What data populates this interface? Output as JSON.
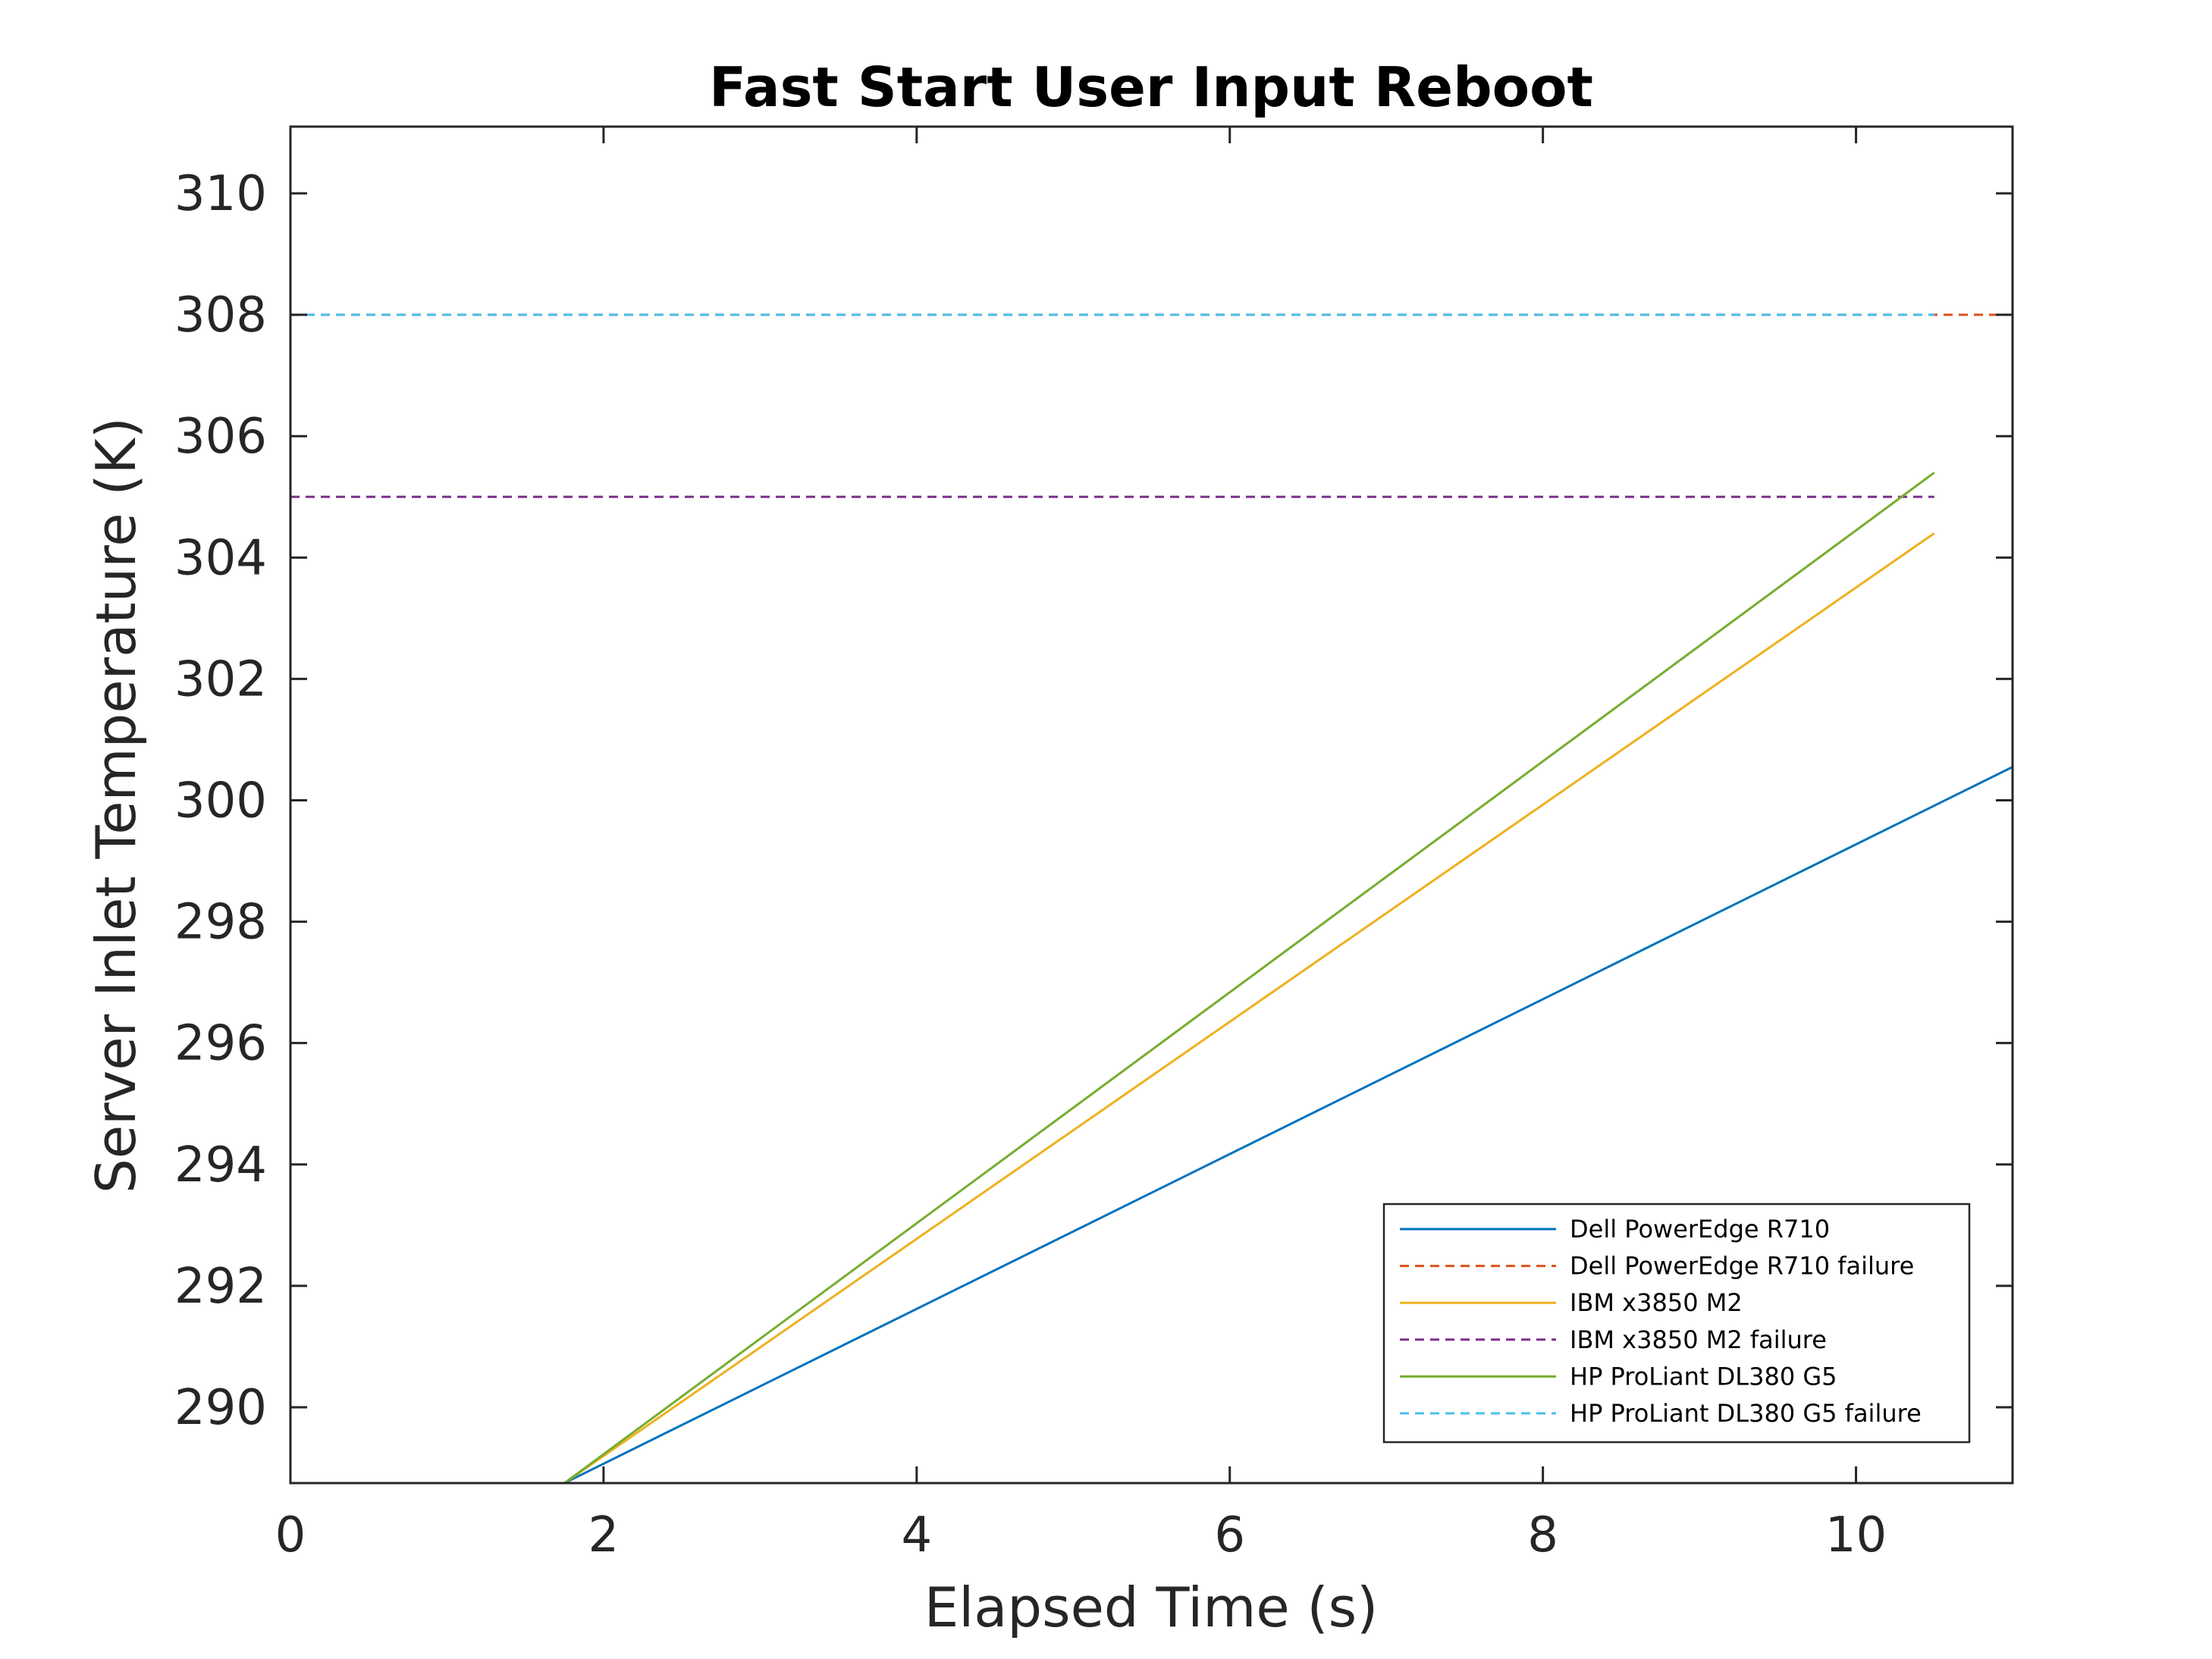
{
  "chart_data": {
    "type": "line",
    "title": "Fast Start User Input Reboot",
    "xlabel": "Elapsed Time (s)",
    "ylabel": "Server Inlet Temperature (K)",
    "xlim": [
      0,
      11
    ],
    "ylim": [
      288.75,
      311.1
    ],
    "xticks": [
      0,
      2,
      4,
      6,
      8,
      10
    ],
    "yticks": [
      290,
      292,
      294,
      296,
      298,
      300,
      302,
      304,
      306,
      308,
      310
    ],
    "grid": false,
    "legend_position": "bottom-right",
    "series": [
      {
        "name": "Dell PowerEdge R710",
        "color": "#0072BD",
        "dash": "solid",
        "x": [
          0,
          1.75,
          11
        ],
        "y": [
          288.75,
          288.75,
          300.55
        ]
      },
      {
        "name": "Dell PowerEdge R710 failure",
        "color": "#D95319",
        "dash": "dashed",
        "x": [
          0,
          11
        ],
        "y": [
          308,
          308
        ]
      },
      {
        "name": "IBM x3850 M2",
        "color": "#EDB120",
        "dash": "solid",
        "x": [
          0,
          1.75,
          10.5
        ],
        "y": [
          288.75,
          288.75,
          304.4
        ]
      },
      {
        "name": "IBM x3850 M2 failure",
        "color": "#7E2F8E",
        "dash": "dashed",
        "x": [
          0,
          10.5
        ],
        "y": [
          305,
          305
        ]
      },
      {
        "name": "HP ProLiant DL380 G5",
        "color": "#77AC30",
        "dash": "solid",
        "x": [
          0,
          1.75,
          10.5
        ],
        "y": [
          288.75,
          288.75,
          305.4
        ]
      },
      {
        "name": "HP ProLiant DL380 G5 failure",
        "color": "#4DBEEE",
        "dash": "dashed",
        "x": [
          0,
          10.5
        ],
        "y": [
          308,
          308
        ]
      }
    ]
  }
}
